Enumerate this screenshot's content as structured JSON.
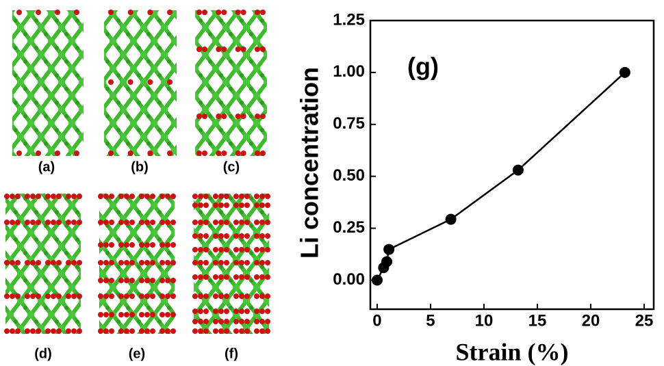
{
  "panels": {
    "labels": [
      "(a)",
      "(b)",
      "(c)",
      "(d)",
      "(e)",
      "(f)"
    ]
  },
  "chart_data": {
    "type": "line",
    "annotation": "(g)",
    "x_label": "Strain (%)",
    "y_label": "Li concentration",
    "x": [
      0,
      0.6,
      0.9,
      1.1,
      6.9,
      13.2,
      23.2
    ],
    "values": [
      0,
      0.06,
      0.089,
      0.148,
      0.293,
      0.53,
      1.0
    ],
    "color": "#000000",
    "xlim": [
      -0.64,
      25.9
    ],
    "ylim": [
      -0.14,
      1.25
    ],
    "xticks": [
      0,
      5,
      10,
      15,
      20,
      25
    ],
    "yticks": [
      {
        "value": 0,
        "label": "0.00"
      },
      0.25,
      {
        "value": 0.5,
        "label": "0.50"
      },
      0.75,
      {
        "value": 1,
        "label": "1.00"
      },
      1.25
    ]
  }
}
